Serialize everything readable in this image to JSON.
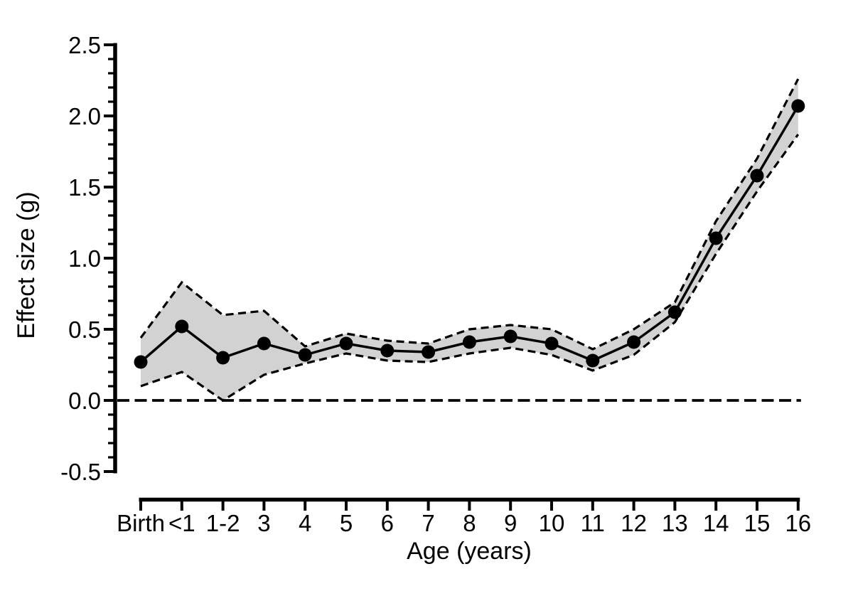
{
  "chart_data": {
    "type": "line",
    "title": "",
    "xlabel": "Age (years)",
    "ylabel": "Effect size (g)",
    "categories": [
      "Birth",
      "<1",
      "1-2",
      "3",
      "4",
      "5",
      "6",
      "7",
      "8",
      "9",
      "10",
      "11",
      "12",
      "13",
      "14",
      "15",
      "16"
    ],
    "series": [
      {
        "name": "mean_effect_size",
        "values": [
          0.27,
          0.52,
          0.3,
          0.4,
          0.32,
          0.4,
          0.35,
          0.34,
          0.41,
          0.45,
          0.4,
          0.28,
          0.41,
          0.62,
          1.14,
          1.58,
          2.07
        ]
      },
      {
        "name": "ci_lower_band_edge",
        "values": [
          0.1,
          0.2,
          0.0,
          0.18,
          0.26,
          0.33,
          0.28,
          0.27,
          0.33,
          0.37,
          0.32,
          0.21,
          0.32,
          0.55,
          1.03,
          1.47,
          1.87
        ]
      },
      {
        "name": "ci_upper_band_edge",
        "values": [
          0.44,
          0.83,
          0.6,
          0.63,
          0.38,
          0.47,
          0.42,
          0.4,
          0.5,
          0.53,
          0.5,
          0.36,
          0.5,
          0.69,
          1.26,
          1.7,
          2.26
        ]
      }
    ],
    "ylim": [
      -0.5,
      2.5
    ],
    "y_tick_values": [
      -0.5,
      0.0,
      0.5,
      1.0,
      1.5,
      2.0,
      2.5
    ],
    "y_tick_labels": [
      "-0.5",
      "0.0",
      "0.5",
      "1.0",
      "1.5",
      "2.0",
      "2.5"
    ],
    "y_minor_tick_step": 0.1,
    "reference_line_y": 0.0,
    "grid": false,
    "legend_position": "none",
    "styles": {
      "background": "#ffffff",
      "band_fill": "#d2d2d2",
      "line_color": "#000000",
      "marker_color": "#000000",
      "band_edge_style": "dashed",
      "reference_line_style": "dashed"
    }
  }
}
